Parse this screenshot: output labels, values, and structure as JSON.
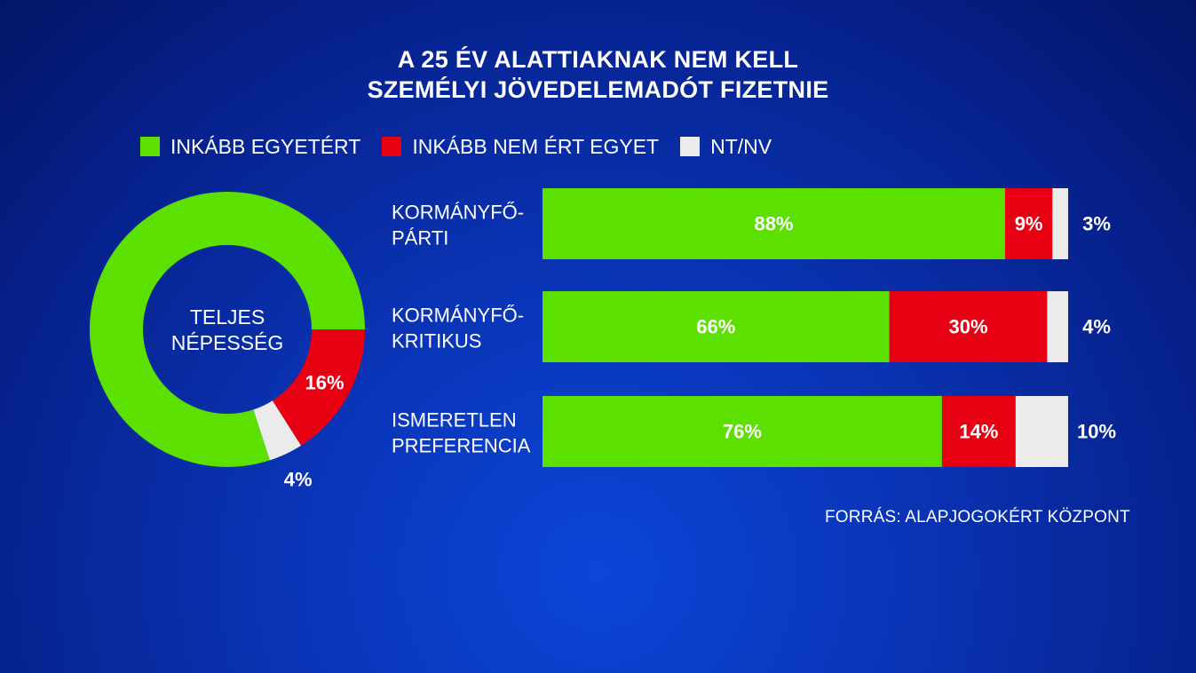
{
  "title": {
    "line1": "A 25 ÉV ALATTIAKNAK NEM KELL",
    "line2": "SZEMÉLYI JÖVEDELEMADÓT FIZETNIE"
  },
  "legend": [
    {
      "label": "INKÁBB EGYETÉRT",
      "color": "#5ce000"
    },
    {
      "label": "INKÁBB NEM ÉRT EGYET",
      "color": "#e60012"
    },
    {
      "label": "NT/NV",
      "color": "#ebebeb"
    }
  ],
  "source": "FORRÁS: ALAPJOGOKÉRT KÖZPONT",
  "colors": {
    "agree": "#5ce000",
    "disagree": "#e60012",
    "unknown": "#ebebeb"
  },
  "chart_data": [
    {
      "type": "pie",
      "donut": true,
      "center_label": [
        "TELJES",
        "NÉPESSÉG"
      ],
      "labels": [
        "INKÁBB EGYETÉRT",
        "INKÁBB NEM ÉRT EGYET",
        "NT/NV"
      ],
      "values": [
        80,
        16,
        4
      ],
      "value_labels": [
        "80%",
        "16%",
        "4%"
      ]
    },
    {
      "type": "bar",
      "orientation": "horizontal",
      "stacked": true,
      "categories": [
        [
          "KORMÁNYFŐ-",
          "PÁRTI"
        ],
        [
          "KORMÁNYFŐ-",
          "KRITIKUS"
        ],
        [
          "ISMERETLEN",
          "PREFERENCIA"
        ]
      ],
      "series": [
        {
          "name": "INKÁBB EGYETÉRT",
          "values": [
            88,
            66,
            76
          ],
          "labels": [
            "88%",
            "66%",
            "76%"
          ]
        },
        {
          "name": "INKÁBB NEM ÉRT EGYET",
          "values": [
            9,
            30,
            14
          ],
          "labels": [
            "9%",
            "30%",
            "14%"
          ]
        },
        {
          "name": "NT/NV",
          "values": [
            3,
            4,
            10
          ],
          "labels": [
            "3%",
            "4%",
            "10%"
          ]
        }
      ],
      "xlim": [
        0,
        100
      ]
    }
  ]
}
